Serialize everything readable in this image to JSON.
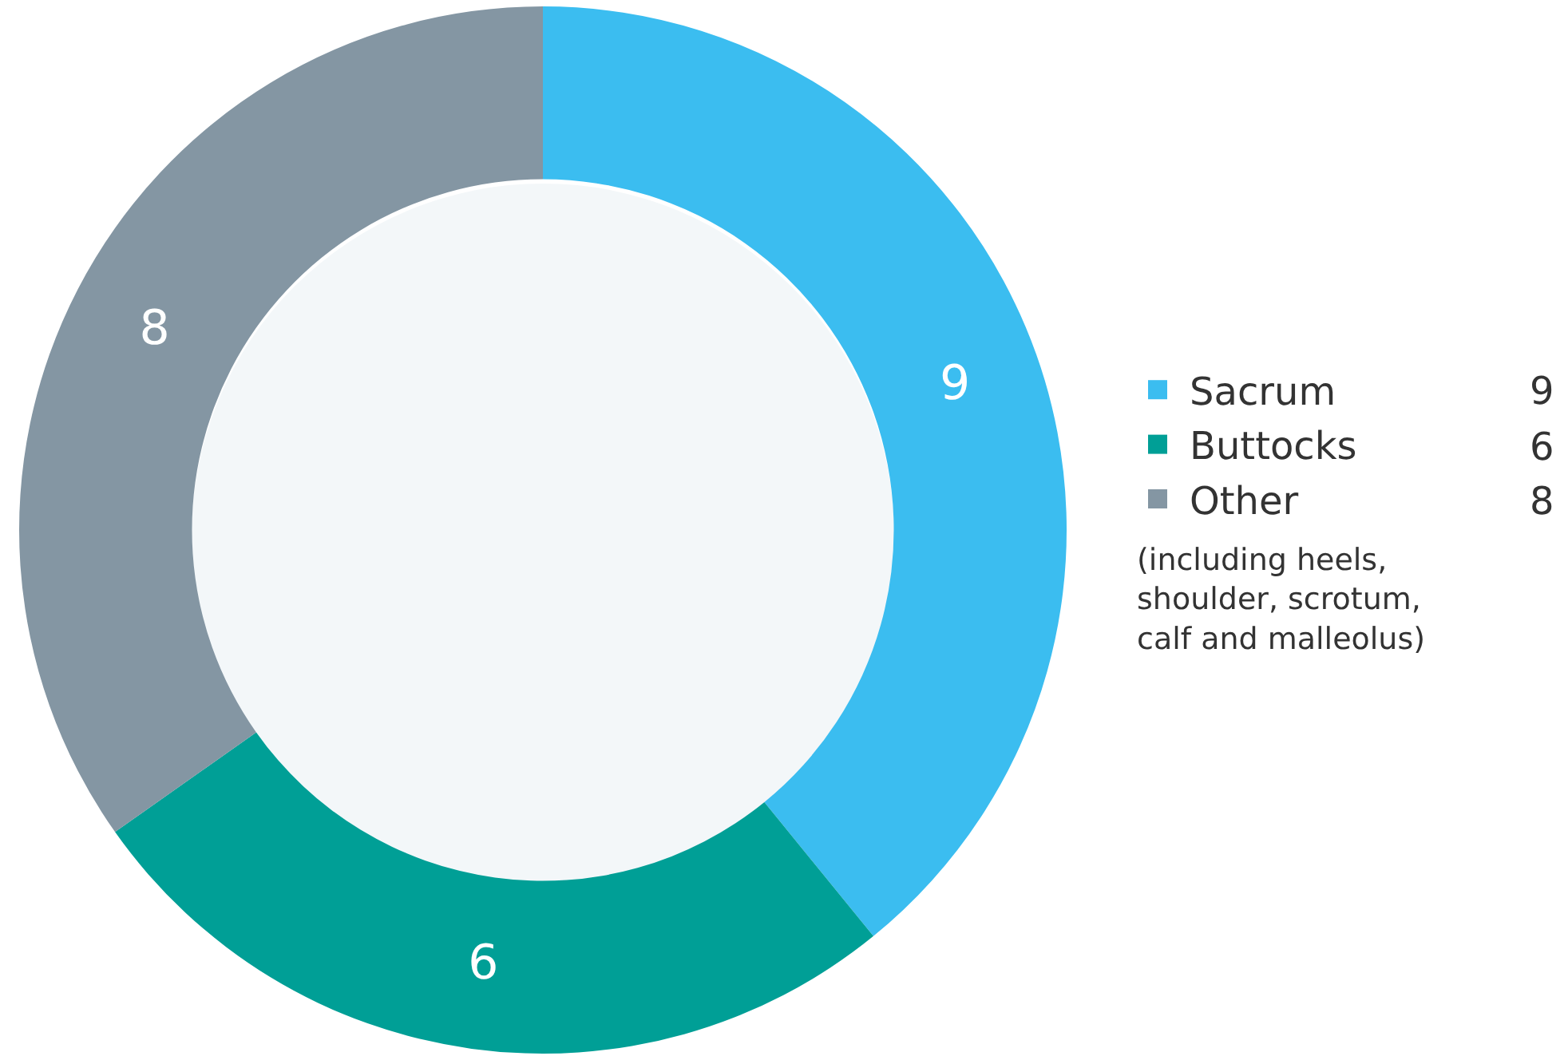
{
  "chart_data": {
    "type": "donut",
    "categories": [
      "Sacrum",
      "Buttocks",
      "Other"
    ],
    "values": [
      9,
      6,
      8
    ],
    "colors": [
      "#3bbdf0",
      "#009f96",
      "#8496a3"
    ],
    "data_labels": true,
    "legend": "right",
    "annotations": [
      "9",
      "6",
      "8",
      "(including heels,\nshoulder, scrotum,\ncalf and malleolus)"
    ]
  }
}
